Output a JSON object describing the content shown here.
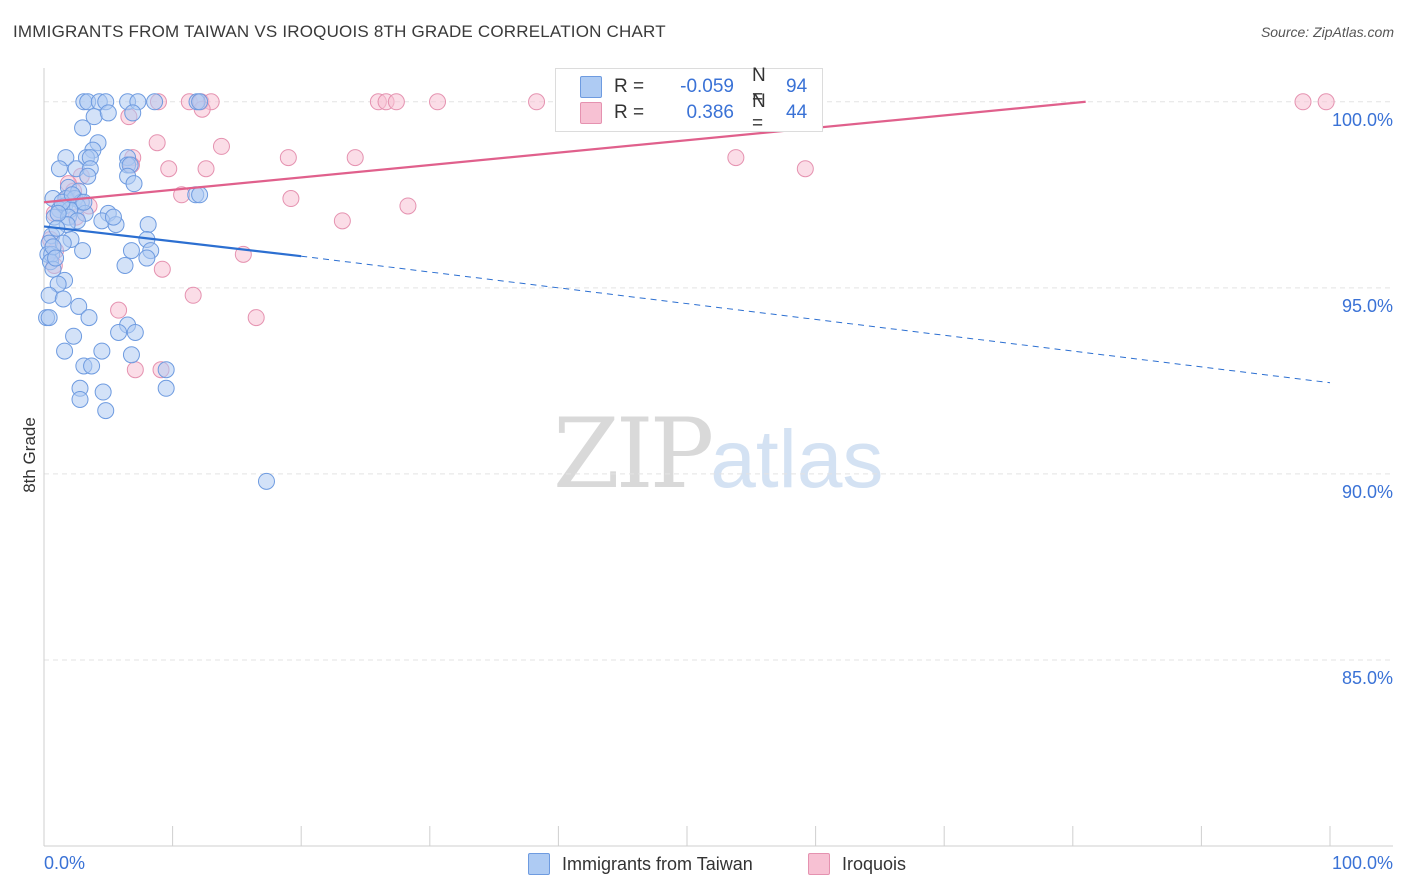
{
  "header": {
    "title": "IMMIGRANTS FROM TAIWAN VS IROQUOIS 8TH GRADE CORRELATION CHART",
    "source": "Source: ZipAtlas.com"
  },
  "watermark": {
    "zip": "ZIP",
    "atlas": "atlas"
  },
  "legend": {
    "rows": [
      {
        "r_label": "R =",
        "r_value": "-0.059",
        "n_label": "N =",
        "n_value": "94"
      },
      {
        "r_label": "R =",
        "r_value": "0.386",
        "n_label": "N =",
        "n_value": "44"
      }
    ]
  },
  "bottom_legend": [
    {
      "label": "Immigrants from Taiwan"
    },
    {
      "label": "Iroquois"
    }
  ],
  "colors": {
    "taiwan_fill": "#aecbf3",
    "taiwan_stroke": "#6e9be0",
    "taiwan_line": "#2c6fd1",
    "iroquois_fill": "#f7c1d3",
    "iroquois_stroke": "#e592b0",
    "iroquois_line": "#e0608c",
    "tick_label": "#3a72d6",
    "grid": "#e3e3e3"
  },
  "chart_data": {
    "type": "scatter",
    "title": "IMMIGRANTS FROM TAIWAN VS IROQUOIS 8TH GRADE CORRELATION CHART",
    "xlabel": "",
    "ylabel": "8th Grade",
    "xlim": [
      0,
      100
    ],
    "ylim": [
      80.0,
      100.8
    ],
    "x_tick_labels": [
      {
        "value": 0,
        "label": "0.0%"
      },
      {
        "value": 100,
        "label": "100.0%"
      }
    ],
    "y_tick_labels": [
      {
        "value": 100,
        "label": "100.0%"
      },
      {
        "value": 95,
        "label": "95.0%"
      },
      {
        "value": 90,
        "label": "90.0%"
      },
      {
        "value": 85,
        "label": "85.0%"
      }
    ],
    "x_minor_ticks": [
      0,
      10,
      20,
      30,
      40,
      50,
      60,
      70,
      80,
      90,
      100
    ],
    "y_grid": [
      100,
      95,
      90,
      85
    ],
    "grid": true,
    "legend_position": "top-center",
    "series": [
      {
        "name": "Immigrants from Taiwan",
        "r": -0.059,
        "n": 94,
        "trend": {
          "x": [
            0,
            20,
            100
          ],
          "y": [
            96.65,
            95.85,
            92.45
          ],
          "solid_until": 20
        },
        "points": [
          [
            3.1,
            100
          ],
          [
            3.4,
            100
          ],
          [
            4.3,
            100
          ],
          [
            4.8,
            100
          ],
          [
            6.5,
            100
          ],
          [
            7.3,
            100
          ],
          [
            8.6,
            100
          ],
          [
            11.9,
            100
          ],
          [
            12.1,
            100
          ],
          [
            3.9,
            99.6
          ],
          [
            5.0,
            99.7
          ],
          [
            6.9,
            99.7
          ],
          [
            3.0,
            99.3
          ],
          [
            4.2,
            98.9
          ],
          [
            3.8,
            98.7
          ],
          [
            1.7,
            98.5
          ],
          [
            3.3,
            98.5
          ],
          [
            3.6,
            98.5
          ],
          [
            6.5,
            98.5
          ],
          [
            6.5,
            98.3
          ],
          [
            6.7,
            98.3
          ],
          [
            1.2,
            98.2
          ],
          [
            2.5,
            98.2
          ],
          [
            3.6,
            98.2
          ],
          [
            3.4,
            98.0
          ],
          [
            6.5,
            98.0
          ],
          [
            7.0,
            97.8
          ],
          [
            1.9,
            97.7
          ],
          [
            2.7,
            97.6
          ],
          [
            11.8,
            97.5
          ],
          [
            12.1,
            97.5
          ],
          [
            0.7,
            97.4
          ],
          [
            1.7,
            97.4
          ],
          [
            2.4,
            97.4
          ],
          [
            2.9,
            97.3
          ],
          [
            1.6,
            97.2
          ],
          [
            2.6,
            97.2
          ],
          [
            1.2,
            97.1
          ],
          [
            2.0,
            97.1
          ],
          [
            3.2,
            97.0
          ],
          [
            5.0,
            97.0
          ],
          [
            0.8,
            96.9
          ],
          [
            1.9,
            96.9
          ],
          [
            2.6,
            96.8
          ],
          [
            4.5,
            96.8
          ],
          [
            1.8,
            96.7
          ],
          [
            5.6,
            96.7
          ],
          [
            8.1,
            96.7
          ],
          [
            0.6,
            96.4
          ],
          [
            2.1,
            96.3
          ],
          [
            8.0,
            96.3
          ],
          [
            0.4,
            96.2
          ],
          [
            1.5,
            96.2
          ],
          [
            3.0,
            96.0
          ],
          [
            6.8,
            96.0
          ],
          [
            8.3,
            96.0
          ],
          [
            0.3,
            95.9
          ],
          [
            0.6,
            95.9
          ],
          [
            8.0,
            95.8
          ],
          [
            0.5,
            95.7
          ],
          [
            6.3,
            95.6
          ],
          [
            0.7,
            95.5
          ],
          [
            1.6,
            95.2
          ],
          [
            1.1,
            95.1
          ],
          [
            0.4,
            94.8
          ],
          [
            1.5,
            94.7
          ],
          [
            2.7,
            94.5
          ],
          [
            0.2,
            94.2
          ],
          [
            0.4,
            94.2
          ],
          [
            3.5,
            94.2
          ],
          [
            6.5,
            94.0
          ],
          [
            5.8,
            93.8
          ],
          [
            7.1,
            93.8
          ],
          [
            2.3,
            93.7
          ],
          [
            1.6,
            93.3
          ],
          [
            4.5,
            93.3
          ],
          [
            6.8,
            93.2
          ],
          [
            3.1,
            92.9
          ],
          [
            3.7,
            92.9
          ],
          [
            9.5,
            92.8
          ],
          [
            2.8,
            92.3
          ],
          [
            9.5,
            92.3
          ],
          [
            4.6,
            92.2
          ],
          [
            2.8,
            92.0
          ],
          [
            4.8,
            91.7
          ],
          [
            17.3,
            89.8
          ],
          [
            0.7,
            96.1
          ],
          [
            1.4,
            97.3
          ],
          [
            2.2,
            97.5
          ],
          [
            1.1,
            97.0
          ],
          [
            0.9,
            95.8
          ],
          [
            1.0,
            96.6
          ],
          [
            3.1,
            97.3
          ],
          [
            5.4,
            96.9
          ]
        ]
      },
      {
        "name": "Iroquois",
        "r": 0.386,
        "n": 44,
        "trend": {
          "x": [
            0,
            81
          ],
          "y": [
            97.3,
            100.0
          ],
          "solid_until": 81
        },
        "points": [
          [
            8.9,
            100
          ],
          [
            11.3,
            100
          ],
          [
            12.2,
            100
          ],
          [
            13.0,
            100
          ],
          [
            26.0,
            100
          ],
          [
            26.6,
            100
          ],
          [
            27.4,
            100
          ],
          [
            30.6,
            100
          ],
          [
            38.3,
            100
          ],
          [
            97.9,
            100
          ],
          [
            99.7,
            100
          ],
          [
            12.3,
            99.8
          ],
          [
            6.6,
            99.6
          ],
          [
            8.8,
            98.9
          ],
          [
            13.8,
            98.8
          ],
          [
            6.9,
            98.5
          ],
          [
            19.0,
            98.5
          ],
          [
            24.2,
            98.5
          ],
          [
            53.8,
            98.5
          ],
          [
            6.8,
            98.3
          ],
          [
            9.7,
            98.2
          ],
          [
            12.6,
            98.2
          ],
          [
            59.2,
            98.2
          ],
          [
            2.9,
            98.0
          ],
          [
            1.9,
            97.8
          ],
          [
            2.3,
            97.6
          ],
          [
            1.8,
            97.4
          ],
          [
            10.7,
            97.5
          ],
          [
            19.2,
            97.4
          ],
          [
            28.3,
            97.2
          ],
          [
            3.5,
            97.2
          ],
          [
            0.8,
            97.0
          ],
          [
            2.5,
            96.9
          ],
          [
            23.2,
            96.8
          ],
          [
            0.5,
            96.3
          ],
          [
            0.9,
            96.0
          ],
          [
            15.5,
            95.9
          ],
          [
            0.8,
            95.6
          ],
          [
            9.2,
            95.5
          ],
          [
            11.6,
            94.8
          ],
          [
            5.8,
            94.4
          ],
          [
            16.5,
            94.2
          ],
          [
            7.1,
            92.8
          ],
          [
            9.1,
            92.8
          ]
        ]
      }
    ]
  }
}
